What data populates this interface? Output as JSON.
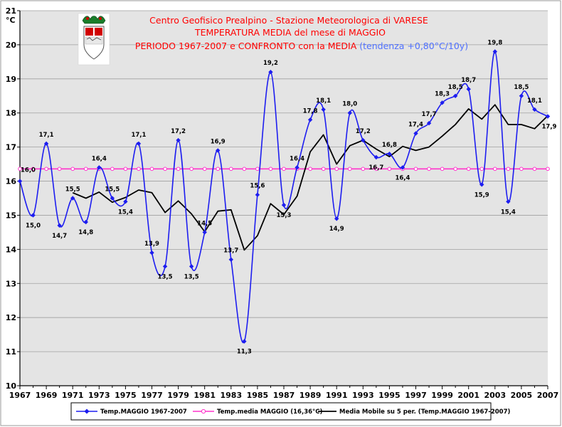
{
  "chart_data": {
    "type": "line",
    "title_lines": [
      "Centro Geofisico Prealpino - Stazione Meteorologica di VARESE",
      "TEMPERATURA MEDIA del mese di MAGGIO",
      "PERIODO 1967-2007 e CONFRONTO con la MEDIA"
    ],
    "trend_note": "(tendenza +0,80°C/10y)",
    "y_unit": "°C",
    "ylim": [
      10,
      21
    ],
    "xlim": [
      1967,
      2007
    ],
    "x_tick_labels": [
      "1967",
      "1969",
      "1971",
      "1973",
      "1975",
      "1977",
      "1979",
      "1981",
      "1983",
      "1985",
      "1987",
      "1989",
      "1991",
      "1993",
      "1995",
      "1997",
      "1999",
      "2001",
      "2003",
      "2005",
      "2007"
    ],
    "y_tick_labels": [
      "10",
      "11",
      "12",
      "13",
      "14",
      "15",
      "16",
      "17",
      "18",
      "19",
      "20",
      "21"
    ],
    "grid": true,
    "colors": {
      "plot_bg": "#e4e4e4",
      "temperature": "#1d1df0",
      "mean": "#ff33cc",
      "moving_avg": "#000000",
      "title": "#ff0000",
      "trend": "#4f70ff"
    },
    "series": [
      {
        "name": "Temp.MAGGIO 1967-2007",
        "x": [
          1967,
          1968,
          1969,
          1970,
          1971,
          1972,
          1973,
          1974,
          1975,
          1976,
          1977,
          1978,
          1979,
          1980,
          1981,
          1982,
          1983,
          1984,
          1985,
          1986,
          1987,
          1988,
          1989,
          1990,
          1991,
          1992,
          1993,
          1994,
          1995,
          1996,
          1997,
          1998,
          1999,
          2000,
          2001,
          2002,
          2003,
          2004,
          2005,
          2006,
          2007
        ],
        "values": [
          16.0,
          15.0,
          17.1,
          14.7,
          15.5,
          14.8,
          16.4,
          15.5,
          15.4,
          17.1,
          13.9,
          13.5,
          17.2,
          13.5,
          14.5,
          16.9,
          13.7,
          11.3,
          15.6,
          19.2,
          15.3,
          16.4,
          17.8,
          18.1,
          14.9,
          18.0,
          17.2,
          16.7,
          16.8,
          16.4,
          17.4,
          17.7,
          18.3,
          18.5,
          18.7,
          15.9,
          19.8,
          15.4,
          18.5,
          18.1,
          17.9
        ],
        "data_labels": [
          "16,0",
          "15,0",
          "17,1",
          "14,7",
          "15,5",
          "14,8",
          "16,4",
          "15,5",
          "15,4",
          "17,1",
          "13,9",
          "13,5",
          "17,2",
          "13,5",
          "14,5",
          "16,9",
          "13,7",
          "11,3",
          "15,6",
          "19,2",
          "15,3",
          "16,4",
          "17,8",
          "18,1",
          "14,9",
          "18,0",
          "17,2",
          "16,7",
          "16,8",
          "16,4",
          "17,4",
          "17,7",
          "18,3",
          "18,5",
          "18,7",
          "15,9",
          "19,8",
          "15,4",
          "18,5",
          "18,1",
          "17,9"
        ]
      },
      {
        "name": "Temp.media MAGGIO (16,36°C)",
        "constant": 16.36
      },
      {
        "name": "Media Mobile su 5 per. (Temp.MAGGIO 1967-2007)",
        "x": [
          1971,
          1972,
          1973,
          1974,
          1975,
          1976,
          1977,
          1978,
          1979,
          1980,
          1981,
          1982,
          1983,
          1984,
          1985,
          1986,
          1987,
          1988,
          1989,
          1990,
          1991,
          1992,
          1993,
          1994,
          1995,
          1996,
          1997,
          1998,
          1999,
          2000,
          2001,
          2002,
          2003,
          2004,
          2005,
          2006,
          2007
        ],
        "values": [
          15.66,
          15.5,
          15.68,
          15.38,
          15.52,
          15.74,
          15.66,
          15.08,
          15.42,
          15.04,
          14.52,
          15.12,
          15.16,
          13.98,
          14.4,
          15.34,
          15.02,
          15.56,
          16.86,
          17.36,
          16.5,
          17.04,
          17.2,
          16.94,
          16.72,
          17.02,
          16.9,
          17.0,
          17.32,
          17.66,
          18.12,
          17.82,
          18.24,
          17.66,
          17.66,
          17.54,
          17.92
        ]
      }
    ],
    "legend_position": "bottom"
  }
}
